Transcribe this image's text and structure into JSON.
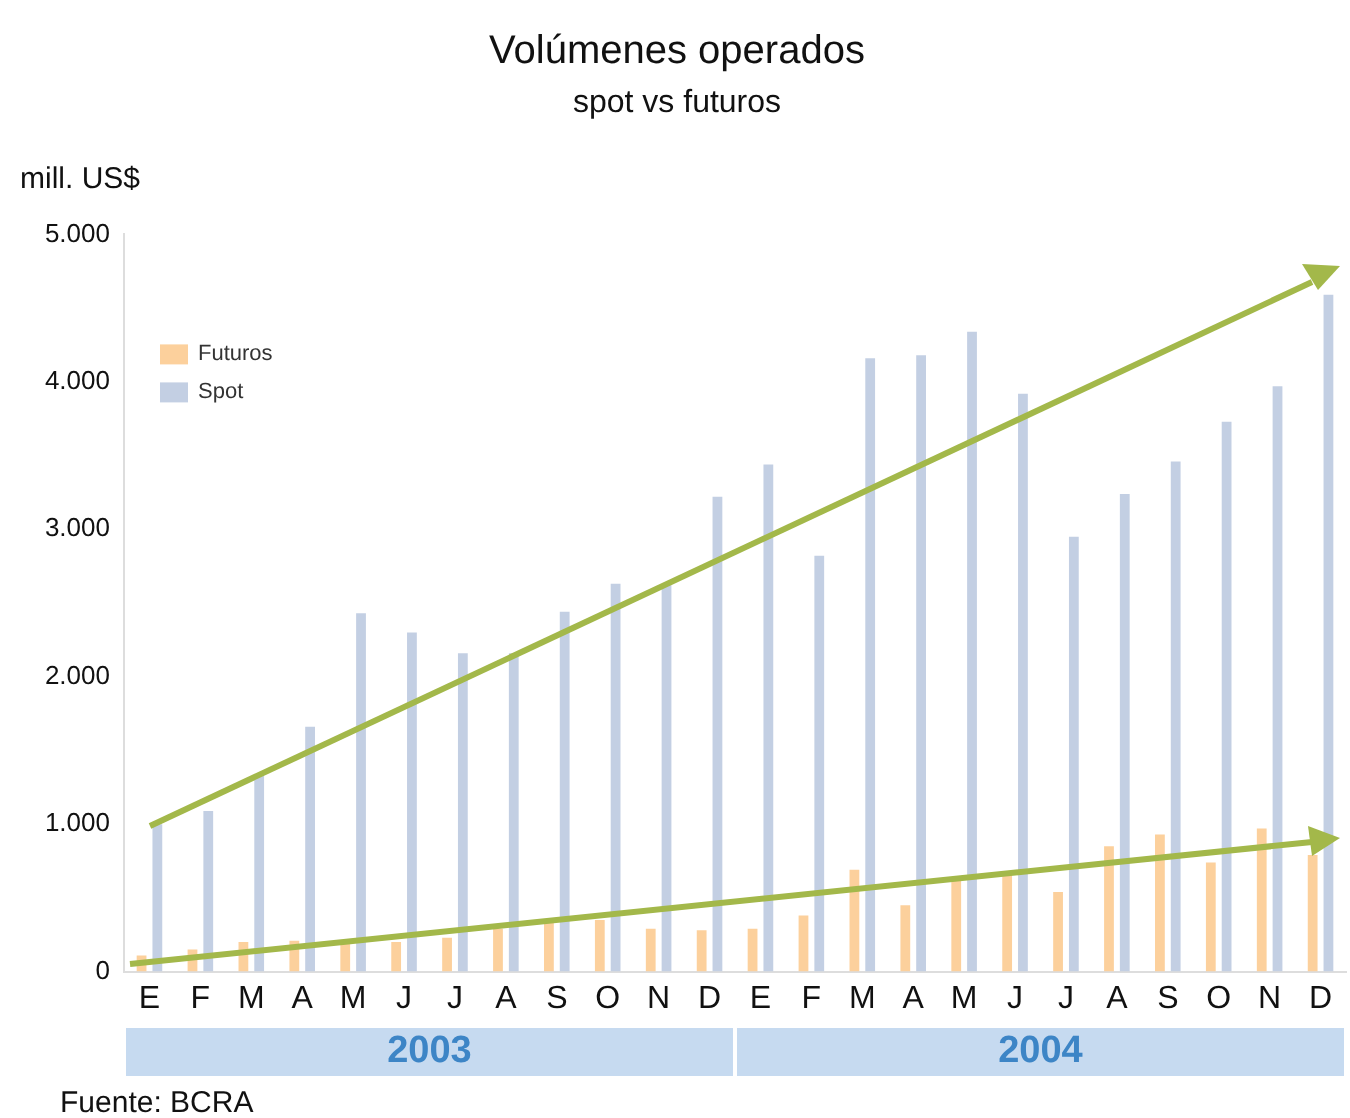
{
  "chart_data": {
    "type": "bar",
    "title": "Volúmenes operados",
    "subtitle": "spot vs futuros",
    "ylabel": "mill. US$",
    "categories": [
      "E",
      "F",
      "M",
      "A",
      "M",
      "J",
      "J",
      "A",
      "S",
      "O",
      "N",
      "D",
      "E",
      "F",
      "M",
      "A",
      "M",
      "J",
      "J",
      "A",
      "S",
      "O",
      "N",
      "D"
    ],
    "series": [
      {
        "name": "Futuros",
        "color": "#fcd09c",
        "values": [
          110,
          150,
          200,
          210,
          210,
          200,
          230,
          290,
          330,
          350,
          290,
          280,
          290,
          380,
          690,
          450,
          620,
          660,
          540,
          850,
          930,
          740,
          970,
          790
        ]
      },
      {
        "name": "Spot",
        "color": "#c3cfe3",
        "values": [
          1000,
          1090,
          1330,
          1660,
          2430,
          2300,
          2160,
          2160,
          2440,
          2630,
          2620,
          3220,
          3440,
          2820,
          4160,
          4180,
          4340,
          3920,
          2950,
          3240,
          3460,
          3730,
          3970,
          4590
        ]
      }
    ],
    "ylim": [
      0,
      5000
    ],
    "yticks": [
      {
        "value": 0,
        "label": "0"
      },
      {
        "value": 1000,
        "label": "1.000"
      },
      {
        "value": 2000,
        "label": "2.000"
      },
      {
        "value": 3000,
        "label": "3.000"
      },
      {
        "value": 4000,
        "label": "4.000"
      },
      {
        "value": 5000,
        "label": "5.000"
      }
    ],
    "grid": false,
    "legend": "top left",
    "annotations": [
      "2003",
      "2004",
      "Fuente: BCRA"
    ]
  }
}
